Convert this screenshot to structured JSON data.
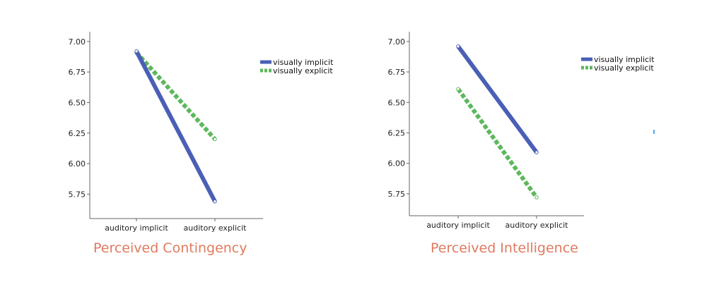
{
  "charts": [
    {
      "caption": "Perceived Contingency",
      "chart_data": {
        "type": "line",
        "categories": [
          "auditory implicit",
          "auditory explicit"
        ],
        "yticks": [
          5.75,
          6.0,
          6.25,
          6.5,
          6.75,
          7.0
        ],
        "ytick_labels": [
          "5.75",
          "6.00",
          "6.25",
          "6.50",
          "6.75",
          "7.00"
        ],
        "ylim": [
          5.55,
          7.08
        ],
        "legend_position": "top-right",
        "series": [
          {
            "name": "visually implicit",
            "values": [
              6.92,
              5.69
            ],
            "color": "#4a5fb5",
            "style": "solid"
          },
          {
            "name": "visually explicit",
            "values": [
              6.91,
              6.2
            ],
            "color": "#5cb85c",
            "style": "dashed"
          }
        ]
      }
    },
    {
      "caption": "Perceived Intelligence",
      "chart_data": {
        "type": "line",
        "categories": [
          "auditory implicit",
          "auditory explicit"
        ],
        "yticks": [
          5.75,
          6.0,
          6.25,
          6.5,
          6.75,
          7.0
        ],
        "ytick_labels": [
          "5.75",
          "6.00",
          "6.25",
          "6.50",
          "6.75",
          "7.00"
        ],
        "ylim": [
          5.57,
          7.08
        ],
        "legend_position": "top-right",
        "series": [
          {
            "name": "visually implicit",
            "values": [
              6.96,
              6.09
            ],
            "color": "#4a5fb5",
            "style": "solid"
          },
          {
            "name": "visually explicit",
            "values": [
              6.61,
              5.72
            ],
            "color": "#5cb85c",
            "style": "dashed"
          }
        ]
      }
    }
  ]
}
